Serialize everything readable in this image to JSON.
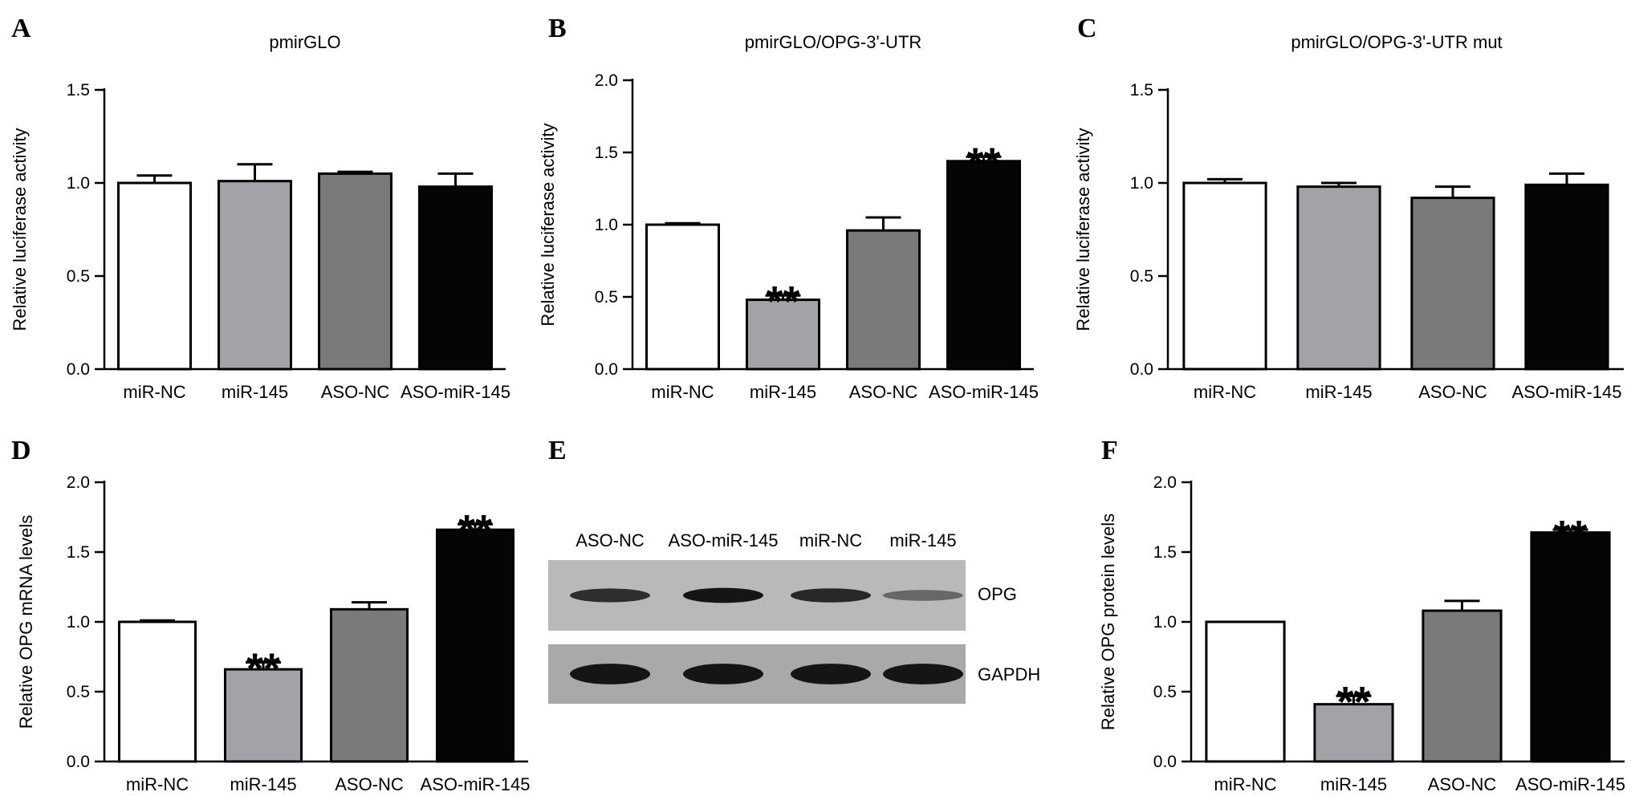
{
  "panel_letters": [
    "A",
    "B",
    "C",
    "D",
    "E",
    "F"
  ],
  "colors": {
    "miR-NC": "#ffffff",
    "miR-145": "#a3a3a7",
    "ASO-NC": "#7a7a7a",
    "ASO-miR-145": "#050505"
  },
  "chart_data": [
    {
      "panel": "A",
      "type": "bar",
      "title": "pmirGLO",
      "xlabel": "",
      "ylabel": "Relative luciferase activity",
      "categories": [
        "miR-NC",
        "miR-145",
        "ASO-NC",
        "ASO-miR-145"
      ],
      "values": [
        1.0,
        1.01,
        1.05,
        0.98
      ],
      "errors": [
        0.04,
        0.09,
        0.01,
        0.07
      ],
      "significance": [
        "",
        "",
        "",
        ""
      ],
      "ylim": [
        0,
        1.5
      ],
      "yticks": [
        "0.0",
        "0.5",
        "1.0",
        "1.5"
      ],
      "grid": false
    },
    {
      "panel": "B",
      "type": "bar",
      "title": "pmirGLO/OPG-3'-UTR",
      "xlabel": "",
      "ylabel": "Relative luciferase activity",
      "categories": [
        "miR-NC",
        "miR-145",
        "ASO-NC",
        "ASO-miR-145"
      ],
      "values": [
        1.0,
        0.48,
        0.96,
        1.44
      ],
      "errors": [
        0.01,
        0.03,
        0.09,
        0.03
      ],
      "significance": [
        "",
        "**",
        "",
        "**"
      ],
      "ylim": [
        0,
        2.0
      ],
      "yticks": [
        "0.0",
        "0.5",
        "1.0",
        "1.5",
        "2.0"
      ],
      "grid": false
    },
    {
      "panel": "C",
      "type": "bar",
      "title": "pmirGLO/OPG-3'-UTR mut",
      "xlabel": "",
      "ylabel": "Relative luciferase activity",
      "categories": [
        "miR-NC",
        "miR-145",
        "ASO-NC",
        "ASO-miR-145"
      ],
      "values": [
        1.0,
        0.98,
        0.92,
        0.99
      ],
      "errors": [
        0.02,
        0.02,
        0.06,
        0.06
      ],
      "significance": [
        "",
        "",
        "",
        ""
      ],
      "ylim": [
        0,
        1.5
      ],
      "yticks": [
        "0.0",
        "0.5",
        "1.0",
        "1.5"
      ],
      "grid": false
    },
    {
      "panel": "D",
      "type": "bar",
      "title": "",
      "xlabel": "",
      "ylabel": "Relative OPG mRNA levels",
      "categories": [
        "miR-NC",
        "miR-145",
        "ASO-NC",
        "ASO-miR-145"
      ],
      "values": [
        1.0,
        0.66,
        1.09,
        1.66
      ],
      "errors": [
        0.01,
        0.05,
        0.05,
        0.04
      ],
      "significance": [
        "",
        "**",
        "",
        "**"
      ],
      "ylim": [
        0,
        2.0
      ],
      "yticks": [
        "0.0",
        "0.5",
        "1.0",
        "1.5",
        "2.0"
      ],
      "grid": false
    },
    {
      "panel": "F",
      "type": "bar",
      "title": "",
      "xlabel": "",
      "ylabel": "Relative OPG protein levels",
      "categories": [
        "miR-NC",
        "miR-145",
        "ASO-NC",
        "ASO-miR-145"
      ],
      "values": [
        1.0,
        0.41,
        1.08,
        1.64
      ],
      "errors": [
        0.0,
        0.06,
        0.07,
        0.02
      ],
      "significance": [
        "",
        "**",
        "",
        "**"
      ],
      "ylim": [
        0,
        2.0
      ],
      "yticks": [
        "0.0",
        "0.5",
        "1.0",
        "1.5",
        "2.0"
      ],
      "grid": false
    }
  ],
  "blot": {
    "panel": "E",
    "lanes": [
      "ASO-NC",
      "ASO-miR-145",
      "miR-NC",
      "miR-145"
    ],
    "rows": [
      {
        "label": "OPG",
        "intensity": [
          0.75,
          0.95,
          0.8,
          0.3
        ]
      },
      {
        "label": "GAPDH",
        "intensity": [
          0.95,
          0.95,
          0.95,
          0.95
        ]
      }
    ]
  }
}
